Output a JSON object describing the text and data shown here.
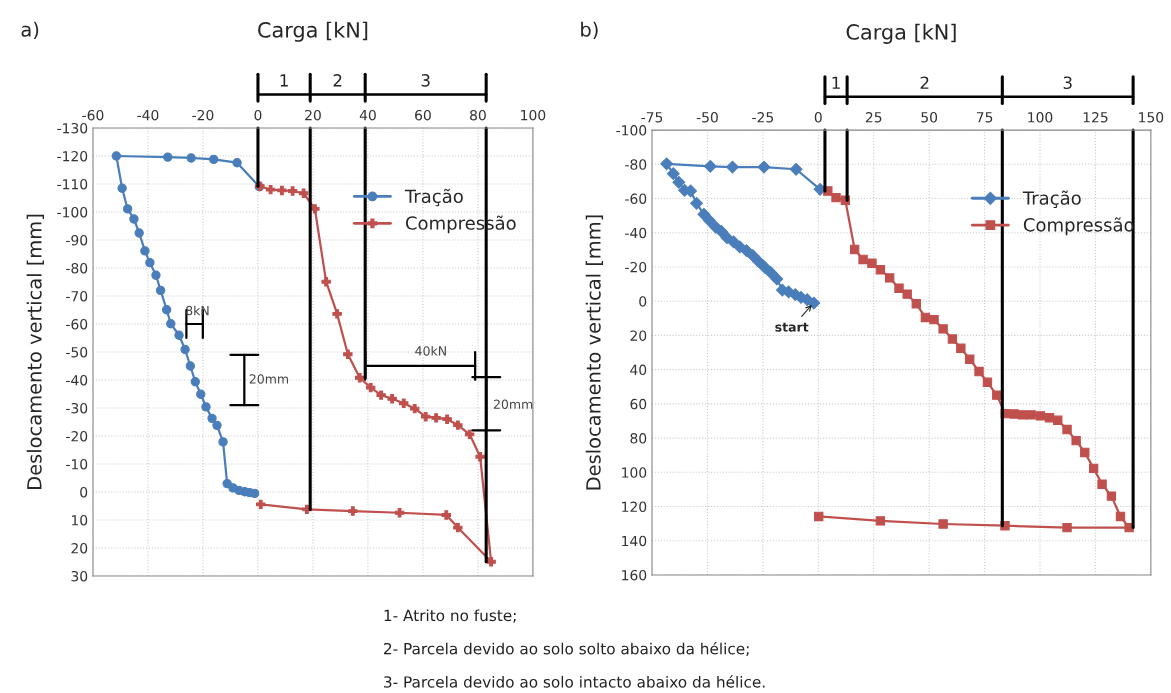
{
  "chart_data": [
    {
      "type": "line",
      "title": "a)",
      "xlabel": "Carga [kN]",
      "ylabel": "Deslocamento vertical [mm]",
      "xlim": [
        -60,
        100
      ],
      "xticks": [
        -60,
        -40,
        -20,
        0,
        20,
        40,
        60,
        80,
        100
      ],
      "ylim": [
        30,
        -130
      ],
      "yticks": [
        -130,
        -120,
        -110,
        -100,
        -90,
        -80,
        -70,
        -60,
        -50,
        -40,
        -30,
        -20,
        -10,
        0,
        10,
        20,
        30
      ],
      "grid": true,
      "legend": "top right",
      "series": [
        {
          "name": "Tração",
          "color": "#4a7ebb",
          "marker": "circle",
          "x": [
            -1.2,
            -3.0,
            -4.8,
            -6.9,
            -9.1,
            -11.2,
            -12.7,
            -14.9,
            -16.7,
            -18.9,
            -20.8,
            -22.8,
            -24.6,
            -26.5,
            -28.7,
            -31.7,
            -33.2,
            -35.4,
            -37.1,
            -39.3,
            -41.1,
            -43.2,
            -45.1,
            -47.4,
            -49.4,
            -51.5,
            -32.8,
            -24.3,
            -16.1,
            -7.6,
            0.5
          ],
          "values": [
            0.5,
            0.2,
            -0.1,
            -0.6,
            -1.5,
            -3.0,
            -17.9,
            -23.8,
            -26.3,
            -30.4,
            -34.9,
            -39.4,
            -45.0,
            -50.9,
            -56.0,
            -60.1,
            -65.1,
            -72.0,
            -77.4,
            -81.9,
            -86.1,
            -92.5,
            -97.5,
            -101.1,
            -108.5,
            -120.0,
            -119.6,
            -119.3,
            -118.8,
            -117.6,
            -109.0
          ]
        },
        {
          "name": "Compressão",
          "color": "#c0504d",
          "marker": "cross",
          "x": [
            0.7,
            4.6,
            8.7,
            12.6,
            16.6,
            20.7,
            24.8,
            28.8,
            32.7,
            37.0,
            41.0,
            44.8,
            48.8,
            53.0,
            57.0,
            61.0,
            64.8,
            68.8,
            72.7,
            77.0,
            80.8,
            84.8,
            72.7,
            68.5,
            51.5,
            34.5,
            17.8,
            1.0
          ],
          "values": [
            -109.2,
            -108.0,
            -107.7,
            -107.5,
            -106.7,
            -101.1,
            -75.1,
            -63.6,
            -49.2,
            -40.8,
            -37.3,
            -34.6,
            -33.3,
            -31.7,
            -29.8,
            -26.9,
            -26.5,
            -26.0,
            -23.9,
            -20.6,
            -12.6,
            24.9,
            12.7,
            8.2,
            7.4,
            6.8,
            6.2,
            4.4
          ]
        }
      ],
      "ref_lines": [
        {
          "axis": "x",
          "value": 0
        },
        {
          "axis": "x",
          "value": 19
        },
        {
          "axis": "x",
          "value": 39
        },
        {
          "axis": "x",
          "value": 83
        }
      ],
      "annotations": [
        "1",
        "2",
        "3",
        "8kN",
        "20mm",
        "40kN",
        "20mm",
        "1- Atrito no fuste;",
        "2- Parcela devido ao solo solto abaixo da hélice;",
        "3- Parcela devido ao solo intacto abaixo da hélice."
      ]
    },
    {
      "type": "line",
      "title": "b)",
      "xlabel": "Carga [kN]",
      "ylabel": "Deslocamento vertical [mm]",
      "xlim": [
        -75,
        150
      ],
      "xticks": [
        -75,
        -50,
        -25,
        0,
        25,
        50,
        75,
        100,
        125,
        150
      ],
      "ylim": [
        160,
        -100
      ],
      "yticks": [
        -100,
        -80,
        -60,
        -40,
        -20,
        0,
        20,
        40,
        60,
        80,
        100,
        120,
        140,
        160
      ],
      "grid": true,
      "legend": "top right",
      "series": [
        {
          "name": "Tração",
          "color": "#4a7ebb",
          "marker": "diamond",
          "x": [
            -2.0,
            -5.0,
            -7.8,
            -10.4,
            -13.4,
            -16.2,
            -18.7,
            -21.5,
            -24.2,
            -27.0,
            -29.5,
            -32.4,
            -35.4,
            -38.2,
            -41.2,
            -43.7,
            -46.2,
            -49.1,
            -51.6,
            -54.9,
            -57.6,
            -60.3,
            -62.9,
            -65.4,
            -68.4,
            -48.7,
            -38.7,
            -24.5,
            -10.0,
            0.8
          ],
          "values": [
            1.1,
            -0.9,
            -2.2,
            -3.9,
            -5.4,
            -6.5,
            -13.0,
            -16.8,
            -19.9,
            -23.3,
            -26.6,
            -29.6,
            -31.7,
            -34.6,
            -37.1,
            -40.8,
            -43.2,
            -47.1,
            -50.8,
            -57.2,
            -64.4,
            -64.8,
            -69.5,
            -74.5,
            -80.3,
            -78.8,
            -78.4,
            -78.4,
            -77.1,
            -65.4
          ]
        },
        {
          "name": "Compressão",
          "color": "#c0504d",
          "marker": "square",
          "x": [
            4.3,
            8.0,
            12.2,
            16.4,
            20.2,
            24.2,
            28.0,
            32.2,
            36.4,
            40.1,
            44.2,
            48.3,
            52.2,
            56.3,
            60.5,
            64.3,
            68.3,
            72.5,
            76.3,
            80.5,
            84.3,
            88.3,
            92.2,
            96.0,
            100.2,
            104.3,
            108.0,
            112.2,
            116.3,
            120.2,
            124.2,
            128.0,
            132.2,
            136.3,
            140.2,
            112.2,
            84.2,
            56.3,
            28.0,
            0.2
          ],
          "values": [
            -64.4,
            -60.5,
            -59.0,
            -30.2,
            -24.4,
            -22.2,
            -18.4,
            -13.6,
            -7.6,
            -4.1,
            1.5,
            9.5,
            10.8,
            16.2,
            22.1,
            27.5,
            33.9,
            41.1,
            47.4,
            54.9,
            65.7,
            65.9,
            66.4,
            66.4,
            67.0,
            68.1,
            69.6,
            75.0,
            81.5,
            88.4,
            97.7,
            107.0,
            113.9,
            125.8,
            132.3,
            132.3,
            131.2,
            130.2,
            128.4,
            125.8
          ]
        }
      ],
      "ref_lines": [
        {
          "axis": "x",
          "value": 3
        },
        {
          "axis": "x",
          "value": 13
        },
        {
          "axis": "x",
          "value": 83
        },
        {
          "axis": "x",
          "value": 142
        }
      ],
      "annotations": [
        "1",
        "2",
        "3",
        "start"
      ]
    }
  ]
}
